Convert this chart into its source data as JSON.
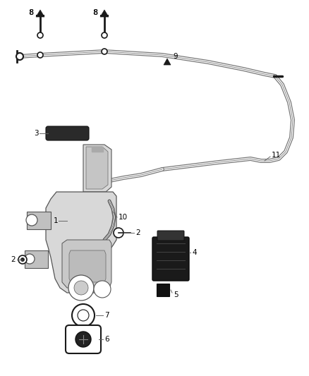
{
  "bg_color": "#ffffff",
  "line_color": "#666666",
  "dark_color": "#1a1a1a",
  "mid_color": "#888888",
  "fig_width": 4.38,
  "fig_height": 5.33,
  "dpi": 100,
  "xlim": [
    0,
    438
  ],
  "ylim": [
    0,
    533
  ]
}
